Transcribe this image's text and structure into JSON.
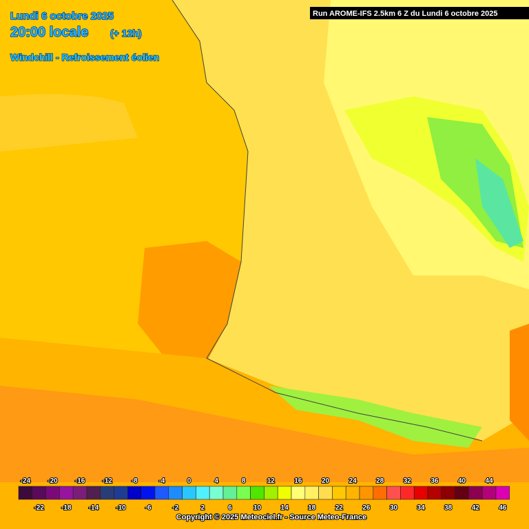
{
  "header": {
    "date": "Lundi 6 octobre 2025",
    "time": "20:00 locale",
    "offset": "(+ 12h)",
    "parameter": "Windchill - Refroissement éolien",
    "run": "Run AROME-IFS 2.5km 6 Z du Lundi 6 octobre 2025"
  },
  "legend": {
    "values": [
      -24,
      -22,
      -20,
      -18,
      -16,
      -14,
      -12,
      -10,
      -8,
      -6,
      -4,
      -2,
      0,
      2,
      4,
      6,
      8,
      10,
      12,
      14,
      16,
      18,
      20,
      22,
      24,
      26,
      28,
      30,
      32,
      34,
      36,
      38,
      40,
      42,
      44,
      46
    ],
    "colors": [
      "#3c0a3c",
      "#5a0a5a",
      "#7a0a7a",
      "#9614a0",
      "#7a1e7a",
      "#502050",
      "#283c78",
      "#1e3c96",
      "#0000c8",
      "#0014f0",
      "#1e5aff",
      "#1e8cff",
      "#28c8ff",
      "#50f0ff",
      "#78ffd2",
      "#64f096",
      "#78ff50",
      "#50e600",
      "#a0f000",
      "#f0ff00",
      "#ffff78",
      "#fff064",
      "#ffdc50",
      "#ffc800",
      "#ffb400",
      "#ff9600",
      "#ff6e00",
      "#ff5050",
      "#ff2828",
      "#e60000",
      "#b40000",
      "#8c0000",
      "#640014",
      "#8c0050",
      "#b4007a",
      "#dc00b4"
    ]
  },
  "footer": {
    "copyright": "Copyright © 2025 Meteociel.fr - Source Meteo-France"
  }
}
